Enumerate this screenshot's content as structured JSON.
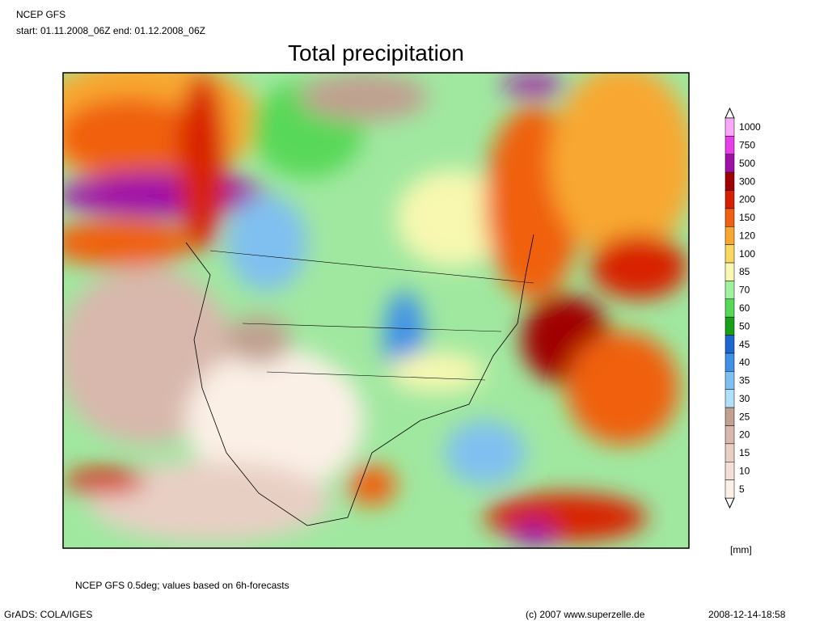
{
  "header": {
    "model": "NCEP GFS",
    "period": "start: 01.11.2008_06Z end: 01.12.2008_06Z"
  },
  "title": "Total precipitation",
  "legend": {
    "unit": "[mm]",
    "items": [
      {
        "value": 1000,
        "color": "#f8a8f8"
      },
      {
        "value": 750,
        "color": "#e840e8"
      },
      {
        "value": 500,
        "color": "#a010a8"
      },
      {
        "value": 300,
        "color": "#a00000"
      },
      {
        "value": 200,
        "color": "#d82000"
      },
      {
        "value": 150,
        "color": "#f06010"
      },
      {
        "value": 120,
        "color": "#f8a830"
      },
      {
        "value": 100,
        "color": "#f8d860"
      },
      {
        "value": 85,
        "color": "#f8f8b0"
      },
      {
        "value": 70,
        "color": "#a0f0a0"
      },
      {
        "value": 60,
        "color": "#58d858"
      },
      {
        "value": 50,
        "color": "#18a018"
      },
      {
        "value": 45,
        "color": "#1c68d0"
      },
      {
        "value": 40,
        "color": "#4090e8"
      },
      {
        "value": 35,
        "color": "#80c0f0"
      },
      {
        "value": 30,
        "color": "#b0e0f8"
      },
      {
        "value": 25,
        "color": "#c0a090"
      },
      {
        "value": 20,
        "color": "#d8b8ac"
      },
      {
        "value": 15,
        "color": "#e8cfc4"
      },
      {
        "value": 10,
        "color": "#f2e0d8"
      },
      {
        "value": 5,
        "color": "#fbf0e6"
      }
    ]
  },
  "footer": {
    "note": "NCEP GFS 0.5deg; values based on 6h-forecasts",
    "software": "GrADS: COLA/IGES",
    "copyright": "(c) 2007 www.superzelle.de",
    "timestamp": "2008-12-14-18:58"
  }
}
